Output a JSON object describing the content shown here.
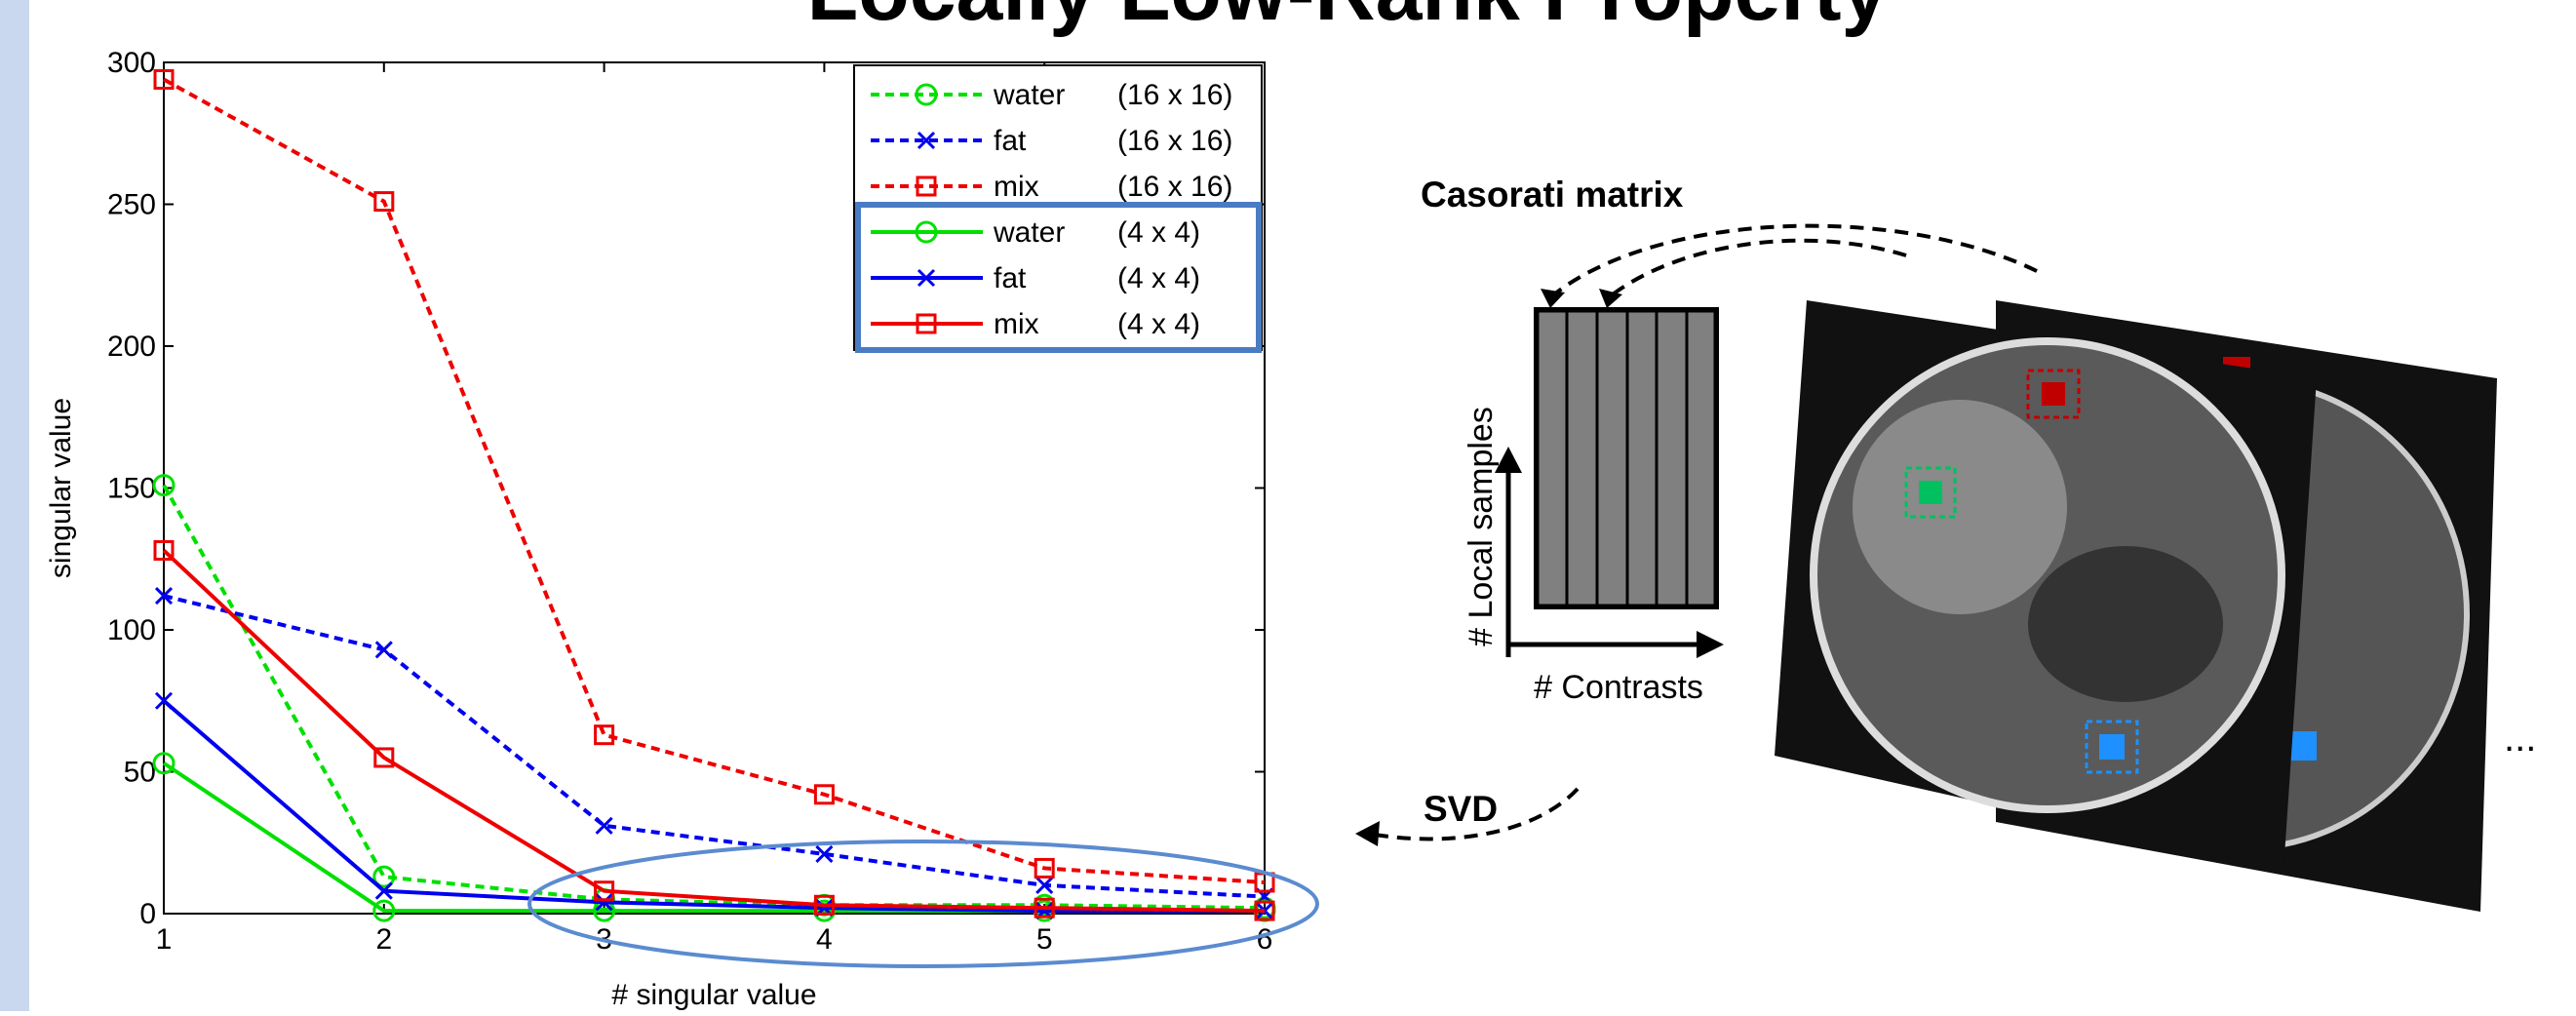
{
  "slide": {
    "title": "Locally Low-Rank Property"
  },
  "chart_data": {
    "type": "line",
    "x_label": "# singular value",
    "y_label": "singular value",
    "x": [
      1,
      2,
      3,
      4,
      5,
      6
    ],
    "xlim": [
      1,
      6
    ],
    "xticks": [
      1,
      2,
      3,
      4,
      5,
      6
    ],
    "ylim": [
      0,
      300
    ],
    "yticks": [
      0,
      50,
      100,
      150,
      200,
      250,
      300
    ],
    "legend": "upper right",
    "series": [
      {
        "name": "water",
        "size": "(16 x 16)",
        "color": "#00e000",
        "line_style": "dotted",
        "marker": "o",
        "values": [
          151,
          13,
          5,
          3,
          3,
          2
        ]
      },
      {
        "name": "fat",
        "size": "(16 x 16)",
        "color": "#0000ee",
        "line_style": "dotted",
        "marker": "x",
        "values": [
          112,
          93,
          31,
          21,
          10,
          6
        ]
      },
      {
        "name": "mix",
        "size": "(16 x 16)",
        "color": "#ee0000",
        "line_style": "dotted",
        "marker": "s",
        "values": [
          294,
          251,
          63,
          42,
          16,
          11
        ]
      },
      {
        "name": "water",
        "size": "(4 x 4)",
        "color": "#00e000",
        "line_style": "solid",
        "marker": "o",
        "values": [
          53,
          1,
          1,
          1,
          1,
          1
        ]
      },
      {
        "name": "fat",
        "size": "(4 x 4)",
        "color": "#0000ee",
        "line_style": "solid",
        "marker": "x",
        "values": [
          75,
          8,
          4,
          2,
          1,
          1
        ]
      },
      {
        "name": "mix",
        "size": "(4 x 4)",
        "color": "#ee0000",
        "line_style": "solid",
        "marker": "s",
        "values": [
          128,
          55,
          8,
          3,
          2,
          1
        ]
      }
    ]
  },
  "diagram": {
    "matrix_label": "Casorati matrix",
    "y_axis_label": "# Local samples",
    "x_axis_label": "# Contrasts",
    "svd_label": "SVD",
    "ellipsis": "..."
  }
}
